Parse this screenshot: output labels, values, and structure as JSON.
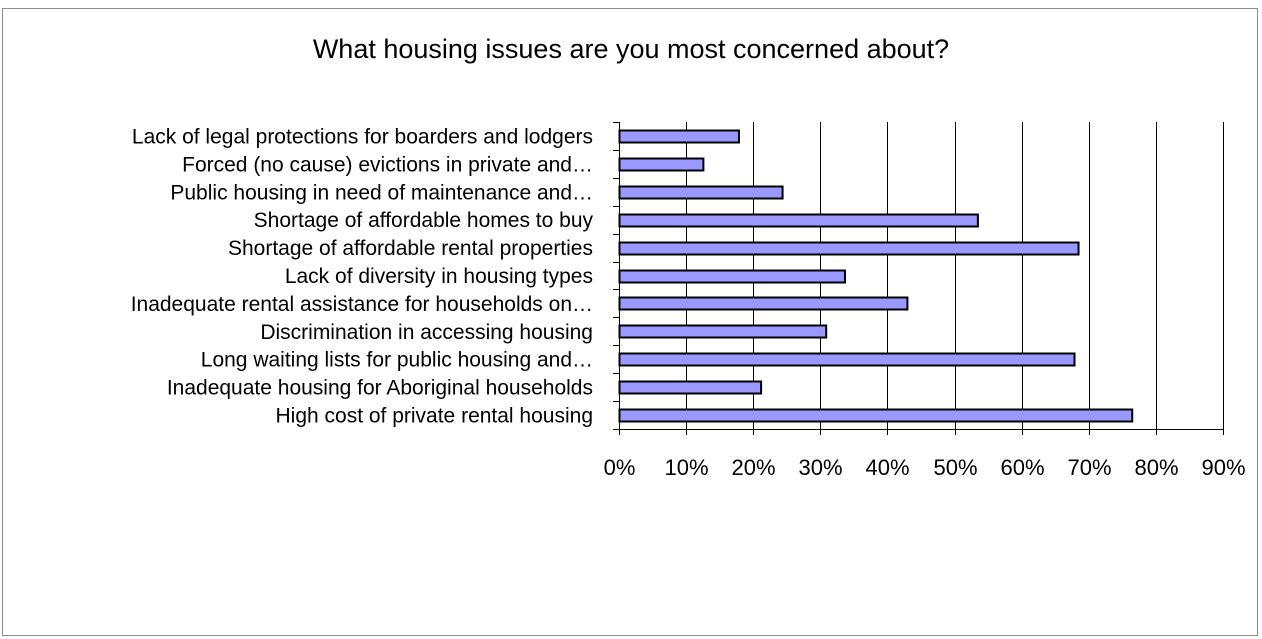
{
  "chart_data": {
    "type": "bar",
    "orientation": "horizontal",
    "title": "What housing issues are you most concerned about?",
    "xlabel": "",
    "ylabel": "",
    "xlim": [
      0,
      90
    ],
    "x_ticks": [
      "0%",
      "10%",
      "20%",
      "30%",
      "40%",
      "50%",
      "60%",
      "70%",
      "80%",
      "90%"
    ],
    "grid": "vertical",
    "legend": "none",
    "bar_color": "#9999ff",
    "bar_edge_color": "#000000",
    "categories": [
      "Lack of legal protections for boarders and lodgers",
      "Forced (no cause) evictions in private and…",
      "Public housing in need of maintenance and…",
      "Shortage of affordable homes to buy",
      "Shortage of affordable rental properties",
      "Lack of diversity in housing types",
      "Inadequate rental assistance for households on…",
      "Discrimination in accessing housing",
      "Long waiting lists for public housing and…",
      "Inadequate housing for Aboriginal households",
      "High cost of private rental housing"
    ],
    "values": [
      17.8,
      12.5,
      24.3,
      53.4,
      68.4,
      33.6,
      42.9,
      30.8,
      67.8,
      21.1,
      76.4
    ]
  }
}
